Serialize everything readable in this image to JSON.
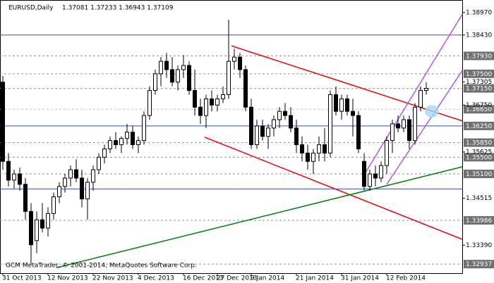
{
  "chart_data": {
    "type": "candlestick",
    "title": "EURUSD,Daily",
    "quote": "1.37081 1.37233 1.36943 1.37109",
    "watermark": "GCM MetaTrader, © 2001-2014, MetaQuotes Software Corp.",
    "categories": [
      "31 Oct 2013",
      null,
      null,
      null,
      null,
      null,
      null,
      null,
      "12 Nov 2013",
      null,
      null,
      null,
      null,
      null,
      null,
      null,
      "22 Nov 2013",
      null,
      null,
      null,
      null,
      null,
      null,
      null,
      "4 Dec 2013",
      null,
      null,
      null,
      null,
      null,
      null,
      null,
      "16 Dec 2013",
      null,
      null,
      null,
      null,
      null,
      "27 Dec 2013",
      null,
      null,
      null,
      null,
      null,
      "9 Jan 2014",
      null,
      null,
      null,
      null,
      null,
      null,
      null,
      "21 Jan 2014",
      null,
      null,
      null,
      null,
      null,
      null,
      null,
      "31 Jan 2014",
      null,
      null,
      null,
      null,
      null,
      null,
      null,
      "12 Feb 2014",
      null,
      null,
      null,
      null,
      null,
      null,
      null
    ],
    "open": [
      1.373,
      1.354,
      1.3495,
      1.351,
      1.3485,
      1.342,
      1.335,
      1.34,
      1.338,
      1.3415,
      1.3455,
      1.348,
      1.35,
      1.352,
      1.35,
      1.345,
      1.349,
      1.352,
      1.355,
      1.357,
      1.359,
      1.358,
      1.3595,
      1.361,
      1.358,
      1.359,
      1.365,
      1.371,
      1.375,
      1.378,
      1.376,
      1.373,
      1.376,
      1.377,
      1.371,
      1.367,
      1.365,
      1.369,
      1.3675,
      1.369,
      1.37,
      1.378,
      1.379,
      1.376,
      1.367,
      1.358,
      1.3625,
      1.36,
      1.362,
      1.364,
      1.366,
      1.365,
      1.362,
      1.358,
      1.356,
      1.354,
      1.356,
      1.358,
      1.356,
      1.37,
      1.366,
      1.369,
      1.366,
      1.365,
      1.354,
      1.348,
      1.351,
      1.35,
      1.353,
      1.359,
      1.363,
      1.362,
      1.364,
      1.359,
      1.367,
      1.371
    ],
    "high": [
      1.3745,
      1.356,
      1.352,
      1.3525,
      1.35,
      1.344,
      1.342,
      1.344,
      1.343,
      1.3465,
      1.349,
      1.351,
      1.353,
      1.3545,
      1.352,
      1.35,
      1.353,
      1.356,
      1.358,
      1.36,
      1.361,
      1.36,
      1.363,
      1.3625,
      1.36,
      1.366,
      1.372,
      1.376,
      1.379,
      1.38,
      1.379,
      1.377,
      1.3795,
      1.378,
      1.376,
      1.369,
      1.37,
      1.371,
      1.37,
      1.372,
      1.388,
      1.381,
      1.38,
      1.377,
      1.369,
      1.364,
      1.364,
      1.363,
      1.365,
      1.367,
      1.368,
      1.367,
      1.364,
      1.36,
      1.358,
      1.357,
      1.36,
      1.362,
      1.371,
      1.372,
      1.37,
      1.37,
      1.369,
      1.366,
      1.356,
      1.352,
      1.353,
      1.354,
      1.36,
      1.364,
      1.365,
      1.365,
      1.365,
      1.368,
      1.372,
      1.373
    ],
    "low": [
      1.352,
      1.348,
      1.3475,
      1.347,
      1.34,
      1.3295,
      1.332,
      1.337,
      1.336,
      1.34,
      1.344,
      1.3465,
      1.348,
      1.349,
      1.343,
      1.34,
      1.347,
      1.351,
      1.3535,
      1.356,
      1.357,
      1.356,
      1.358,
      1.357,
      1.356,
      1.358,
      1.364,
      1.37,
      1.372,
      1.374,
      1.372,
      1.371,
      1.374,
      1.37,
      1.365,
      1.363,
      1.362,
      1.366,
      1.366,
      1.368,
      1.369,
      1.376,
      1.374,
      1.366,
      1.357,
      1.357,
      1.359,
      1.357,
      1.36,
      1.362,
      1.364,
      1.361,
      1.356,
      1.354,
      1.352,
      1.351,
      1.354,
      1.354,
      1.355,
      1.365,
      1.364,
      1.365,
      1.36,
      1.356,
      1.347,
      1.347,
      1.348,
      1.349,
      1.351,
      1.356,
      1.361,
      1.361,
      1.357,
      1.358,
      1.366,
      1.37
    ],
    "close": [
      1.354,
      1.3495,
      1.351,
      1.3485,
      1.342,
      1.334,
      1.34,
      1.338,
      1.3415,
      1.3455,
      1.348,
      1.35,
      1.352,
      1.35,
      1.345,
      1.349,
      1.352,
      1.355,
      1.357,
      1.359,
      1.358,
      1.3595,
      1.361,
      1.358,
      1.359,
      1.365,
      1.371,
      1.375,
      1.378,
      1.376,
      1.373,
      1.376,
      1.377,
      1.371,
      1.367,
      1.365,
      1.369,
      1.3675,
      1.369,
      1.37,
      1.378,
      1.379,
      1.376,
      1.367,
      1.358,
      1.3625,
      1.36,
      1.362,
      1.364,
      1.366,
      1.365,
      1.362,
      1.358,
      1.356,
      1.354,
      1.356,
      1.358,
      1.356,
      1.37,
      1.366,
      1.369,
      1.366,
      1.365,
      1.357,
      1.348,
      1.351,
      1.35,
      1.353,
      1.359,
      1.363,
      1.362,
      1.364,
      1.359,
      1.367,
      1.371,
      1.3715
    ],
    "ylim": [
      1.3272,
      1.3927
    ],
    "yticks": [
      {
        "value": 1.3897,
        "label": "1.38970"
      },
      {
        "value": 1.3843,
        "label": "1.38430"
      },
      {
        "value": 1.37305,
        "label": "1.37305"
      },
      {
        "value": 1.3675,
        "label": "1.36750"
      },
      {
        "value": 1.35625,
        "label": "1.35625"
      },
      {
        "value": 1.34515,
        "label": "1.34515"
      },
      {
        "value": 1.3339,
        "label": "1.33390"
      }
    ],
    "hlines": [
      {
        "value": 1.3843,
        "color": "#3050c0",
        "style": "solid"
      },
      {
        "value": 1.3793,
        "label": "1.37930",
        "color": "#909090",
        "style": "dashed"
      },
      {
        "value": 1.375,
        "label": "1.37500",
        "color": "#909090",
        "style": "dashed"
      },
      {
        "value": 1.3715,
        "label": "1.37150",
        "color": "#909090",
        "style": "dashed"
      },
      {
        "value": 1.3665,
        "label": "1.36650",
        "color": "#c0c0c0",
        "style": "dashed"
      },
      {
        "value": 1.3625,
        "label": "1.36250",
        "color": "#3050c0",
        "style": "solid"
      },
      {
        "value": 1.3585,
        "label": "1.35850",
        "color": "#909090",
        "style": "dashed"
      },
      {
        "value": 1.355,
        "label": "1.35500",
        "color": "#909090",
        "style": "dashed"
      },
      {
        "value": 1.351,
        "label": "1.35100",
        "color": "#909090",
        "style": "dashed"
      },
      {
        "value": 1.3474,
        "color": "#3050c0",
        "style": "solid"
      },
      {
        "value": 1.33986,
        "label": "1.33986",
        "color": "#909090",
        "style": "dashed"
      },
      {
        "value": 1.32937,
        "label": "1.32937",
        "color": "#909090",
        "style": "dashed"
      }
    ],
    "trendlines": [
      {
        "color": "#e01010",
        "x": [
          40.5,
          81.4
        ],
        "y": [
          1.3817,
          1.3637
        ]
      },
      {
        "color": "#e01010",
        "x": [
          35.75,
          81.4
        ],
        "y": [
          1.3598,
          1.3353
        ]
      },
      {
        "color": "#b060e0",
        "x": [
          64,
          81.4
        ],
        "y": [
          1.3508,
          1.3893
        ]
      },
      {
        "color": "#b060e0",
        "x": [
          68,
          81.4
        ],
        "y": [
          1.3485,
          1.3758
        ]
      },
      {
        "color": "#108010",
        "x": [
          9.5,
          81.4
        ],
        "y": [
          1.3285,
          1.3527
        ]
      }
    ],
    "bull_color": "#ffffff",
    "bear_color": "#000000"
  }
}
